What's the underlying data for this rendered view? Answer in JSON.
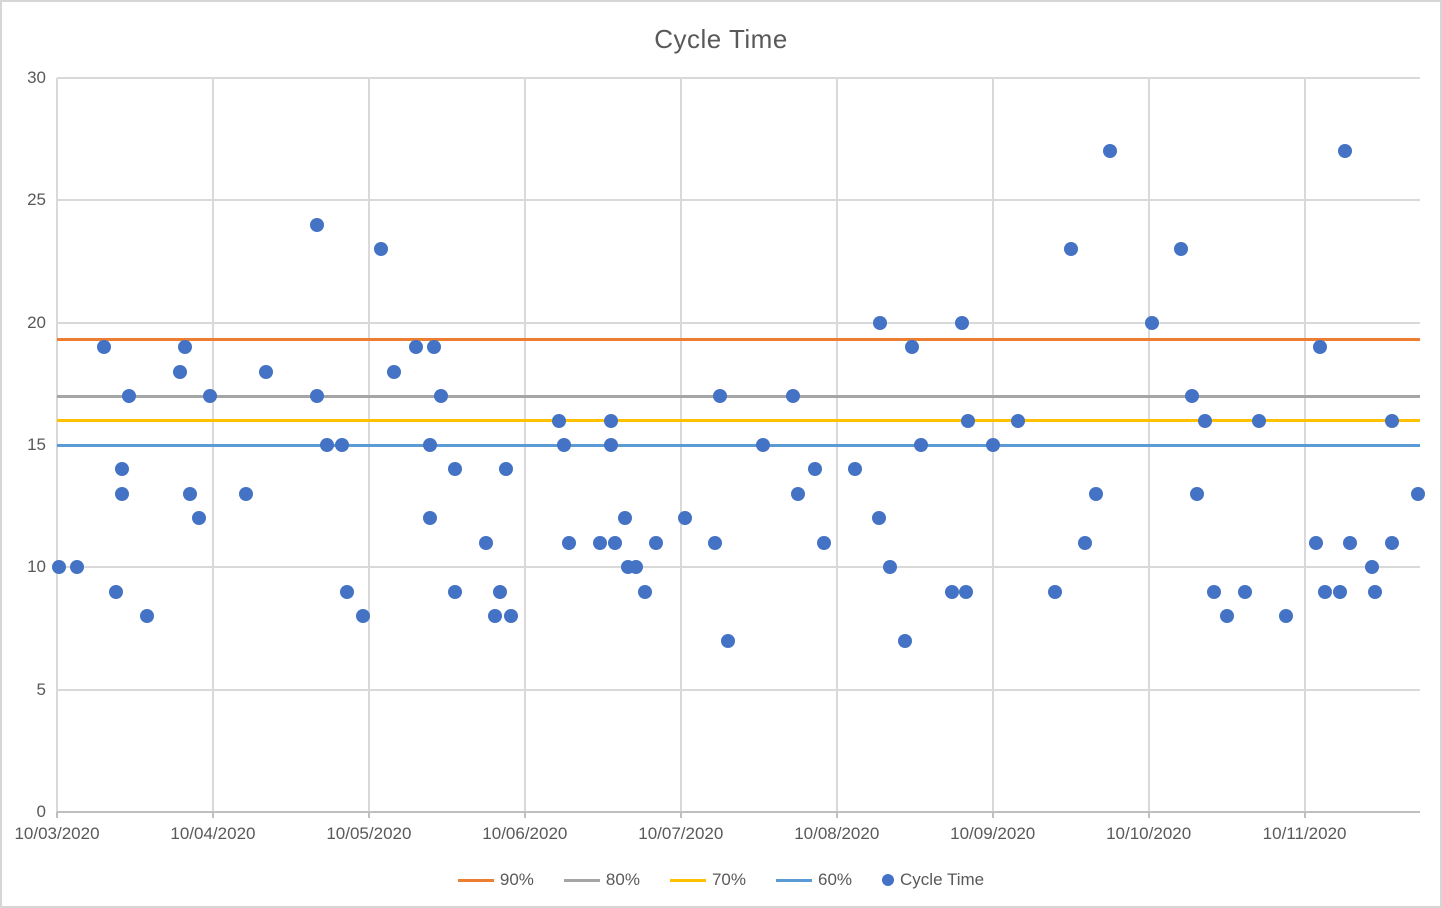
{
  "chart": {
    "title": "Cycle Time"
  },
  "legend": {
    "items": [
      {
        "label": "90%",
        "color": "#ED7D31",
        "marker": "line"
      },
      {
        "label": "80%",
        "color": "#A5A5A5",
        "marker": "line"
      },
      {
        "label": "70%",
        "color": "#FFC000",
        "marker": "line"
      },
      {
        "label": "60%",
        "color": "#5B9BD5",
        "marker": "line"
      },
      {
        "label": "Cycle Time",
        "color": "#4472C4",
        "marker": "dot"
      }
    ]
  },
  "chart_data": {
    "type": "scatter",
    "title": "Cycle Time",
    "xlabel": "",
    "ylabel": "",
    "grid": true,
    "legend_position": "bottom",
    "x_axis": {
      "unit": "date",
      "tick_labels": [
        "10/03/2020",
        "10/04/2020",
        "10/05/2020",
        "10/06/2020",
        "10/07/2020",
        "10/08/2020",
        "10/09/2020",
        "10/10/2020",
        "10/11/2020"
      ],
      "tick_days": [
        0,
        1,
        2,
        3,
        4,
        5,
        6,
        7,
        8
      ],
      "range_days": [
        0,
        8.74
      ]
    },
    "y_axis": {
      "ticks": [
        0,
        5,
        10,
        15,
        20,
        25,
        30
      ],
      "range": [
        0,
        30
      ]
    },
    "colors": {
      "points": "#4472C4",
      "gridline": "#D9D9D9",
      "axis_line": "#BFBFBF",
      "text": "#595959"
    },
    "reference_lines": [
      {
        "name": "90%",
        "value": 19.3,
        "color": "#ED7D31"
      },
      {
        "name": "80%",
        "value": 17,
        "color": "#A5A5A5"
      },
      {
        "name": "70%",
        "value": 16,
        "color": "#FFC000"
      },
      {
        "name": "60%",
        "value": 15,
        "color": "#5B9BD5"
      }
    ],
    "series": [
      {
        "name": "Cycle Time",
        "color": "#4472C4",
        "points_format": "[days_since_10/03/2020, cycle_time]",
        "points": [
          [
            0.01,
            10
          ],
          [
            0.13,
            10
          ],
          [
            0.3,
            19
          ],
          [
            0.38,
            9
          ],
          [
            0.42,
            14
          ],
          [
            0.42,
            13
          ],
          [
            0.46,
            17
          ],
          [
            0.58,
            8
          ],
          [
            0.79,
            18
          ],
          [
            0.82,
            19
          ],
          [
            0.85,
            13
          ],
          [
            0.91,
            12
          ],
          [
            0.98,
            17
          ],
          [
            1.21,
            13
          ],
          [
            1.34,
            18
          ],
          [
            1.67,
            24
          ],
          [
            1.67,
            17
          ],
          [
            1.73,
            15
          ],
          [
            1.83,
            15
          ],
          [
            1.86,
            9
          ],
          [
            1.96,
            8
          ],
          [
            2.08,
            23
          ],
          [
            2.16,
            18
          ],
          [
            2.3,
            19
          ],
          [
            2.39,
            15
          ],
          [
            2.39,
            12
          ],
          [
            2.42,
            19
          ],
          [
            2.46,
            17
          ],
          [
            2.55,
            14
          ],
          [
            2.55,
            9
          ],
          [
            2.75,
            11
          ],
          [
            2.81,
            8
          ],
          [
            2.84,
            9
          ],
          [
            2.88,
            14
          ],
          [
            2.91,
            8
          ],
          [
            3.22,
            16
          ],
          [
            3.25,
            15
          ],
          [
            3.28,
            11
          ],
          [
            3.48,
            11
          ],
          [
            3.55,
            16
          ],
          [
            3.55,
            15
          ],
          [
            3.58,
            11
          ],
          [
            3.64,
            12
          ],
          [
            3.66,
            10
          ],
          [
            3.71,
            10
          ],
          [
            3.77,
            9
          ],
          [
            3.84,
            11
          ],
          [
            4.03,
            12
          ],
          [
            4.22,
            11
          ],
          [
            4.25,
            17
          ],
          [
            4.3,
            7
          ],
          [
            4.53,
            15
          ],
          [
            4.72,
            17
          ],
          [
            4.75,
            13
          ],
          [
            4.86,
            14
          ],
          [
            4.92,
            11
          ],
          [
            5.12,
            14
          ],
          [
            5.27,
            12
          ],
          [
            5.28,
            20
          ],
          [
            5.34,
            10
          ],
          [
            5.44,
            7
          ],
          [
            5.48,
            19
          ],
          [
            5.54,
            15
          ],
          [
            5.74,
            9
          ],
          [
            5.8,
            20
          ],
          [
            5.83,
            9
          ],
          [
            5.84,
            16
          ],
          [
            6.0,
            15
          ],
          [
            6.16,
            16
          ],
          [
            6.4,
            9
          ],
          [
            6.5,
            23
          ],
          [
            6.59,
            11
          ],
          [
            6.66,
            13
          ],
          [
            6.75,
            27
          ],
          [
            7.02,
            20
          ],
          [
            7.21,
            23
          ],
          [
            7.28,
            17
          ],
          [
            7.31,
            13
          ],
          [
            7.36,
            16
          ],
          [
            7.42,
            9
          ],
          [
            7.5,
            8
          ],
          [
            7.62,
            9
          ],
          [
            7.71,
            16
          ],
          [
            7.88,
            8
          ],
          [
            8.07,
            11
          ],
          [
            8.1,
            19
          ],
          [
            8.13,
            9
          ],
          [
            8.23,
            9
          ],
          [
            8.26,
            27
          ],
          [
            8.29,
            11
          ],
          [
            8.43,
            10
          ],
          [
            8.45,
            9
          ],
          [
            8.56,
            11
          ],
          [
            8.56,
            16
          ],
          [
            8.73,
            13
          ]
        ]
      }
    ]
  }
}
